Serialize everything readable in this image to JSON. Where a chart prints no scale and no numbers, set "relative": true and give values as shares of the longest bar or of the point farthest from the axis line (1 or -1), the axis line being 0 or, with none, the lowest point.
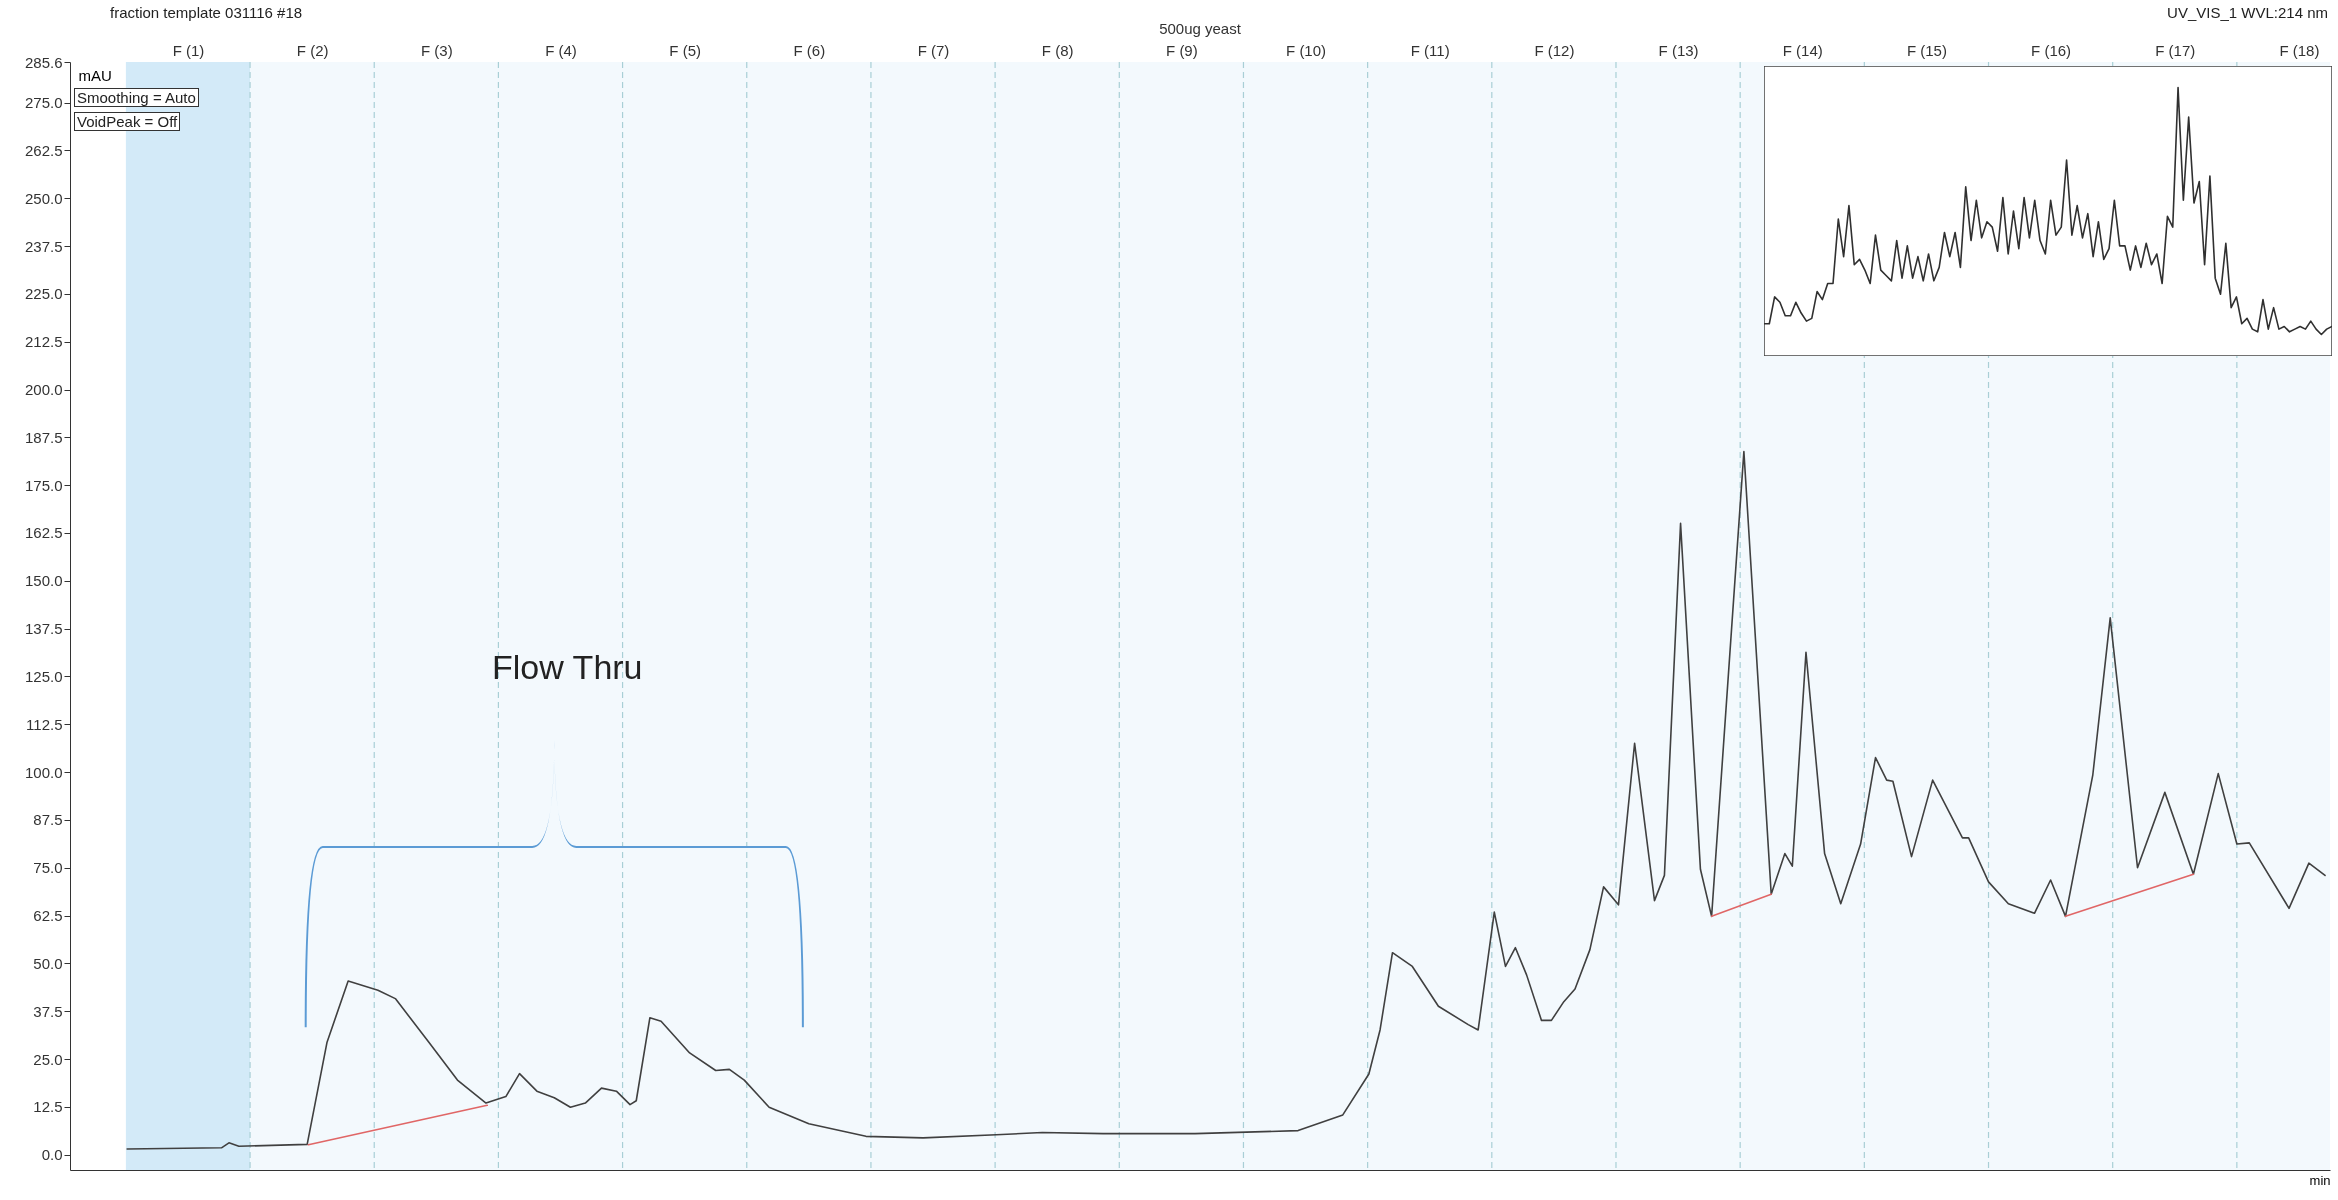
{
  "chart_data": [
    {
      "type": "line",
      "title": "500ug yeast",
      "xlabel": "min",
      "ylabel": "mAU",
      "annotations": [
        "fraction template 031116 #18",
        "UV_VIS_1 WVL:214 nm",
        "Smoothing = Auto",
        "VoidPeak = Off",
        "Flow Thru"
      ],
      "xlim": [
        -0.45,
        17.75
      ],
      "xticks": [
        {
          "value": 0.5,
          "label": "F (1)"
        },
        {
          "value": 1.5,
          "label": "F (2)"
        },
        {
          "value": 2.5,
          "label": "F (3)"
        },
        {
          "value": 3.5,
          "label": "F (4)"
        },
        {
          "value": 4.5,
          "label": "F (5)"
        },
        {
          "value": 5.5,
          "label": "F (6)"
        },
        {
          "value": 6.5,
          "label": "F (7)"
        },
        {
          "value": 7.5,
          "label": "F (8)"
        },
        {
          "value": 8.5,
          "label": "F (9)"
        },
        {
          "value": 9.5,
          "label": "F (10)"
        },
        {
          "value": 10.5,
          "label": "F (11)"
        },
        {
          "value": 11.5,
          "label": "F (12)"
        },
        {
          "value": 12.5,
          "label": "F (13)"
        },
        {
          "value": 13.5,
          "label": "F (14)"
        },
        {
          "value": 14.5,
          "label": "F (15)"
        },
        {
          "value": 15.5,
          "label": "F (16)"
        },
        {
          "value": 16.5,
          "label": "F (17)"
        },
        {
          "value": 17.5,
          "label": "F (18)"
        }
      ],
      "ylim": [
        -4,
        285.6
      ],
      "yticks": [
        {
          "value": 0,
          "label": "0.0"
        },
        12.5,
        {
          "value": 25,
          "label": "25.0"
        },
        37.5,
        {
          "value": 50,
          "label": "50.0"
        },
        62.5,
        {
          "value": 75,
          "label": "75.0"
        },
        87.5,
        {
          "value": 100,
          "label": "100.0"
        },
        112.5,
        {
          "value": 125,
          "label": "125.0"
        },
        137.5,
        {
          "value": 150,
          "label": "150.0"
        },
        162.5,
        {
          "value": 175,
          "label": "175.0"
        },
        187.5,
        {
          "value": 200,
          "label": "200.0"
        },
        212.5,
        {
          "value": 225,
          "label": "225.0"
        },
        237.5,
        {
          "value": 250,
          "label": "250.0"
        },
        262.5,
        {
          "value": 275,
          "label": "275.0"
        },
        285.6
      ],
      "bands": [
        {
          "axis": "x",
          "from": 0,
          "to": 1,
          "color": "#d3eaf8"
        },
        {
          "axis": "x",
          "from": 1,
          "to": 17.75,
          "color": "#f3f9fd"
        }
      ],
      "ref_lines": [
        {
          "axis": "x",
          "value": 1,
          "color": "#a9cfd6",
          "line_style": "dashed"
        },
        {
          "axis": "x",
          "value": 2,
          "color": "#a9cfd6",
          "line_style": "dashed"
        },
        {
          "axis": "x",
          "value": 3,
          "color": "#a9cfd6",
          "line_style": "dashed"
        },
        {
          "axis": "x",
          "value": 4,
          "color": "#a9cfd6",
          "line_style": "dashed"
        },
        {
          "axis": "x",
          "value": 5,
          "color": "#a9cfd6",
          "line_style": "dashed"
        },
        {
          "axis": "x",
          "value": 6,
          "color": "#a9cfd6",
          "line_style": "dashed"
        },
        {
          "axis": "x",
          "value": 7,
          "color": "#a9cfd6",
          "line_style": "dashed"
        },
        {
          "axis": "x",
          "value": 8,
          "color": "#a9cfd6",
          "line_style": "dashed"
        },
        {
          "axis": "x",
          "value": 9,
          "color": "#a9cfd6",
          "line_style": "dashed"
        },
        {
          "axis": "x",
          "value": 10,
          "color": "#a9cfd6",
          "line_style": "dashed"
        },
        {
          "axis": "x",
          "value": 11,
          "color": "#a9cfd6",
          "line_style": "dashed"
        },
        {
          "axis": "x",
          "value": 12,
          "color": "#a9cfd6",
          "line_style": "dashed"
        },
        {
          "axis": "x",
          "value": 13,
          "color": "#a9cfd6",
          "line_style": "dashed"
        },
        {
          "axis": "x",
          "value": 14,
          "color": "#a9cfd6",
          "line_style": "dashed"
        },
        {
          "axis": "x",
          "value": 15,
          "color": "#a9cfd6",
          "line_style": "dashed"
        },
        {
          "axis": "x",
          "value": 16,
          "color": "#a9cfd6",
          "line_style": "dashed"
        },
        {
          "axis": "x",
          "value": 17,
          "color": "#a9cfd6",
          "line_style": "dashed"
        }
      ],
      "series": [
        {
          "color": "#404040",
          "x": [
            0.01,
            0.77,
            0.83,
            0.91,
            1.46,
            1.62,
            1.79,
            2.03,
            2.17,
            2.44,
            2.67,
            2.9,
            3.06,
            3.17,
            3.31,
            3.45,
            3.58,
            3.7,
            3.83,
            3.95,
            4.06,
            4.11,
            4.22,
            4.31,
            4.54,
            4.75,
            4.86,
            4.98,
            5.18,
            5.5,
            5.96,
            6.42,
            7.01,
            7.38,
            7.87,
            8.61,
            9.44,
            9.8,
            10.01,
            10.1,
            10.2,
            10.36,
            10.57,
            10.81,
            10.89,
            11.02,
            11.11,
            11.19,
            11.28,
            11.4,
            11.48,
            11.58,
            11.67,
            11.79,
            11.9,
            12.02,
            12.15,
            12.31,
            12.39,
            12.52,
            12.68,
            12.77,
            13.03,
            13.25,
            13.36,
            13.42,
            13.53,
            13.68,
            13.81,
            13.97,
            14.09,
            14.18,
            14.23,
            14.38,
            14.55,
            14.79,
            14.84,
            15.0,
            15.16,
            15.37,
            15.5,
            15.62,
            15.84,
            15.98,
            16.2,
            16.42,
            16.65,
            16.85,
            17.0,
            17.1,
            17.42,
            17.58,
            17.71
          ],
          "values": [
            1.5,
            1.8,
            3.1,
            2.2,
            2.7,
            29.4,
            45.4,
            43.0,
            40.8,
            29.4,
            19.5,
            13.5,
            15.2,
            21.2,
            16.6,
            14.9,
            12.4,
            13.5,
            17.4,
            16.6,
            13.1,
            14.1,
            35.8,
            34.9,
            26.6,
            22.0,
            22.3,
            19.5,
            12.4,
            8.1,
            4.8,
            4.4,
            5.2,
            5.8,
            5.5,
            5.5,
            6.3,
            10.4,
            21.1,
            32.6,
            52.8,
            49.2,
            38.8,
            34.0,
            32.6,
            63.4,
            49.2,
            54.1,
            47.0,
            35.1,
            35.1,
            40.0,
            43.3,
            53.6,
            70.0,
            65.3,
            107.5,
            66.4,
            73.0,
            165.0,
            74.6,
            62.3,
            183.8,
            68.1,
            78.7,
            75.4,
            131.3,
            78.7,
            65.6,
            81.2,
            103.8,
            97.9,
            97.6,
            77.9,
            97.9,
            82.8,
            82.8,
            71.3,
            65.6,
            63.1,
            71.8,
            62.3,
            99.3,
            140.3,
            75.0,
            94.7,
            73.3,
            99.6,
            81.2,
            81.5,
            64.4,
            76.2,
            73.0
          ]
        },
        {
          "color": "#e06666",
          "x": [
            1.47,
            2.91
          ],
          "values": [
            2.6,
            12.9
          ]
        },
        {
          "color": "#e06666",
          "x": [
            12.77,
            13.25
          ],
          "values": [
            62.3,
            68.1
          ]
        },
        {
          "color": "#e06666",
          "x": [
            15.62,
            16.65
          ],
          "values": [
            62.3,
            73.3
          ]
        }
      ]
    },
    {
      "type": "line",
      "relative": true,
      "categories": [
        null,
        null,
        null,
        null,
        null,
        null,
        null,
        null,
        null,
        null,
        null,
        null,
        null,
        null,
        null,
        null,
        null,
        null,
        null,
        null,
        null,
        null,
        null,
        null,
        null,
        null,
        null,
        null,
        null,
        null,
        null,
        null,
        null,
        null,
        null,
        null,
        null,
        null,
        null,
        null,
        null,
        null,
        null,
        null,
        null,
        null,
        null,
        null,
        null,
        null,
        null,
        null,
        null,
        null,
        null,
        null,
        null,
        null,
        null,
        null,
        null,
        null,
        null,
        null,
        null,
        null,
        null,
        null,
        null,
        null,
        null,
        null,
        null,
        null,
        null,
        null,
        null,
        null,
        null,
        null,
        null,
        null,
        null,
        null,
        null,
        null,
        null,
        null,
        null,
        null,
        null,
        null,
        null,
        null,
        null,
        null,
        null,
        null,
        null,
        null,
        null,
        null,
        null,
        null,
        null,
        null,
        null,
        null
      ],
      "series": [
        {
          "color": "#303030",
          "values": [
            0.12,
            0.12,
            0.22,
            0.2,
            0.15,
            0.15,
            0.2,
            0.16,
            0.13,
            0.14,
            0.24,
            0.21,
            0.27,
            0.27,
            0.51,
            0.37,
            0.56,
            0.34,
            0.36,
            0.32,
            0.27,
            0.45,
            0.32,
            0.3,
            0.28,
            0.43,
            0.29,
            0.41,
            0.29,
            0.37,
            0.28,
            0.38,
            0.28,
            0.33,
            0.46,
            0.37,
            0.46,
            0.33,
            0.63,
            0.43,
            0.58,
            0.44,
            0.5,
            0.48,
            0.39,
            0.59,
            0.38,
            0.54,
            0.4,
            0.59,
            0.44,
            0.58,
            0.43,
            0.38,
            0.58,
            0.45,
            0.48,
            0.73,
            0.45,
            0.56,
            0.44,
            0.53,
            0.37,
            0.5,
            0.36,
            0.4,
            0.58,
            0.41,
            0.41,
            0.32,
            0.41,
            0.33,
            0.42,
            0.34,
            0.38,
            0.27,
            0.52,
            0.48,
            1.0,
            0.58,
            0.89,
            0.57,
            0.65,
            0.34,
            0.67,
            0.29,
            0.23,
            0.42,
            0.18,
            0.22,
            0.12,
            0.14,
            0.1,
            0.09,
            0.21,
            0.1,
            0.18,
            0.1,
            0.11,
            0.09,
            0.1,
            0.11,
            0.1,
            0.13,
            0.1,
            0.08,
            0.1,
            0.11
          ]
        }
      ]
    }
  ]
}
